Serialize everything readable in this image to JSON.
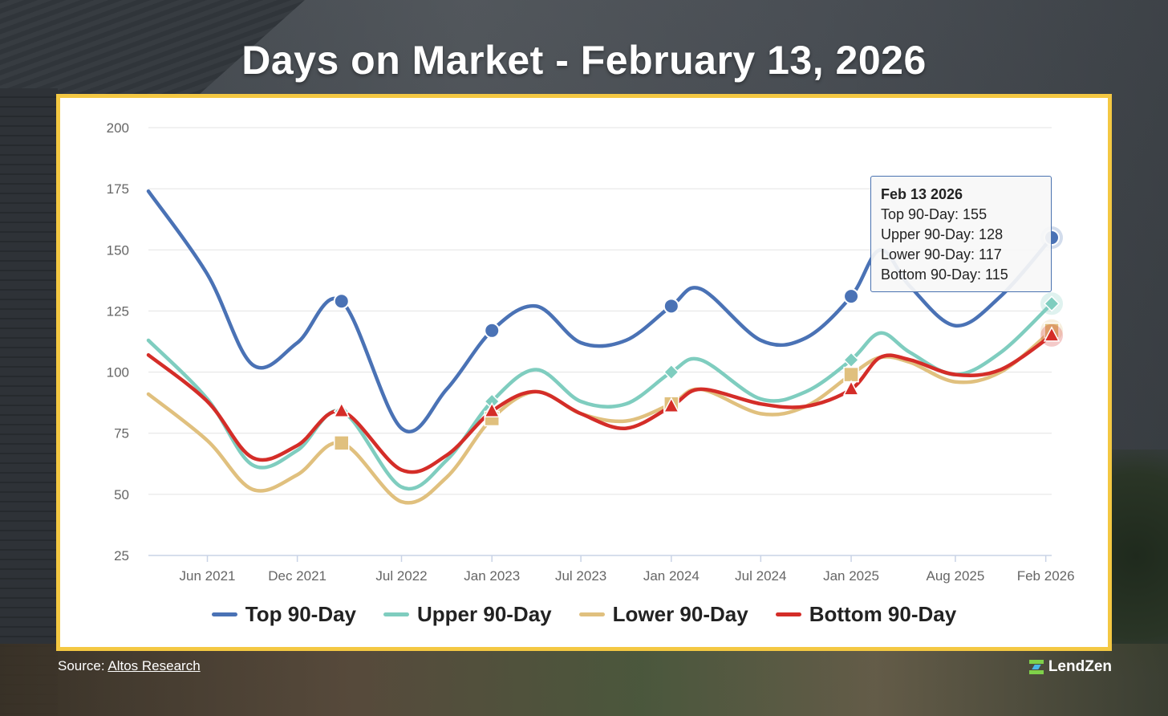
{
  "title": "Days on Market - February 13, 2026",
  "source": {
    "prefix": "Source: ",
    "link_text": "Altos Research"
  },
  "brand": {
    "name": "LendZen"
  },
  "tooltip": {
    "date": "Feb 13 2026",
    "lines": [
      "Top 90-Day: 155",
      "Upper 90-Day: 128",
      "Lower 90-Day: 117",
      "Bottom 90-Day: 115"
    ]
  },
  "colors": {
    "frame": "#f4c842",
    "top": "#4a72b5",
    "upper": "#7fcdbf",
    "lower": "#e0c07e",
    "bottom": "#d42d28"
  },
  "chart_data": {
    "type": "line",
    "title": "Days on Market - February 13, 2026",
    "xlabel": "",
    "ylabel": "",
    "ylim": [
      25,
      200
    ],
    "yticks": [
      25,
      50,
      75,
      100,
      125,
      150,
      175,
      200
    ],
    "grid": true,
    "legend_position": "bottom",
    "xlim": [
      "2021-02-01",
      "2026-02-13"
    ],
    "x_ticks": [
      {
        "label": "Jun 2021",
        "date": "2021-06-01"
      },
      {
        "label": "Dec 2021",
        "date": "2021-12-01"
      },
      {
        "label": "Jul 2022",
        "date": "2022-07-01"
      },
      {
        "label": "Jan 2023",
        "date": "2023-01-01"
      },
      {
        "label": "Jul 2023",
        "date": "2023-07-01"
      },
      {
        "label": "Jan 2024",
        "date": "2024-01-01"
      },
      {
        "label": "Jul 2024",
        "date": "2024-07-01"
      },
      {
        "label": "Jan 2025",
        "date": "2025-01-01"
      },
      {
        "label": "Aug 2025",
        "date": "2025-08-01"
      },
      {
        "label": "Feb 2026",
        "date": "2026-02-01"
      }
    ],
    "x": [
      "2021-02-01",
      "2021-06-01",
      "2021-09-01",
      "2021-12-01",
      "2022-03-01",
      "2022-07-01",
      "2022-10-01",
      "2023-01-01",
      "2023-04-01",
      "2023-07-01",
      "2023-10-01",
      "2024-01-01",
      "2024-03-01",
      "2024-07-01",
      "2024-10-01",
      "2025-01-01",
      "2025-03-01",
      "2025-05-01",
      "2025-08-01",
      "2025-11-01",
      "2026-02-13"
    ],
    "series": [
      {
        "name": "Top 90-Day",
        "color": "#4a72b5",
        "marker": "circle",
        "marker_indices": [
          4,
          7,
          11,
          15,
          20
        ],
        "values": [
          174,
          140,
          103,
          112,
          129,
          77,
          93,
          117,
          127,
          112,
          113,
          127,
          134,
          113,
          114,
          131,
          150,
          135,
          119,
          131,
          155
        ]
      },
      {
        "name": "Upper 90-Day",
        "color": "#7fcdbf",
        "marker": "diamond",
        "marker_indices": [
          4,
          7,
          11,
          15,
          20
        ],
        "values": [
          113,
          89,
          62,
          68,
          84,
          53,
          64,
          88,
          101,
          88,
          87,
          100,
          105,
          89,
          92,
          105,
          116,
          108,
          99,
          108,
          128
        ]
      },
      {
        "name": "Lower 90-Day",
        "color": "#e0c07e",
        "marker": "square",
        "marker_indices": [
          4,
          7,
          11,
          15,
          20
        ],
        "values": [
          91,
          72,
          52,
          58,
          71,
          47,
          57,
          81,
          92,
          83,
          80,
          87,
          93,
          83,
          86,
          99,
          106,
          104,
          96,
          100,
          117
        ]
      },
      {
        "name": "Bottom 90-Day",
        "color": "#d42d28",
        "marker": "triangle",
        "marker_indices": [
          4,
          7,
          11,
          15,
          20
        ],
        "values": [
          107,
          88,
          65,
          70,
          84,
          60,
          66,
          84,
          92,
          83,
          77,
          86,
          93,
          87,
          86,
          93,
          106,
          105,
          99,
          101,
          115
        ]
      }
    ]
  }
}
